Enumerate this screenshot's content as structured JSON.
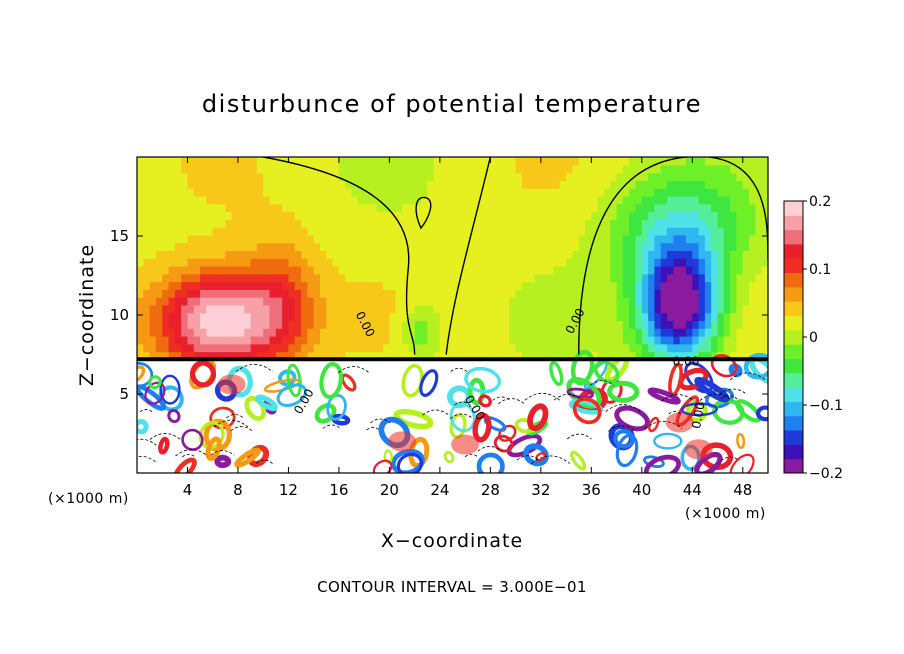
{
  "chart_data": {
    "type": "heatmap",
    "title": "disturbunce of potential temperature",
    "xlabel": "X−coordinate",
    "ylabel": "Z−coordinate",
    "x_unit_left": "(×1000 m)",
    "x_unit_right": "(×1000 m)",
    "footer": "CONTOUR INTERVAL = 3.000E−01",
    "xlim": [
      0,
      50
    ],
    "ylim": [
      0,
      20
    ],
    "x_ticks": [
      4,
      8,
      12,
      16,
      20,
      24,
      28,
      32,
      36,
      40,
      44,
      48
    ],
    "y_ticks": [
      5,
      10,
      15
    ],
    "colorbar": {
      "min": -0.2,
      "max": 0.2,
      "tick_values": [
        0.2,
        0.1,
        0,
        -0.1,
        -0.2
      ],
      "tick_labels": [
        "0.2",
        "0.1",
        "0",
        "−0.1",
        "−0.2"
      ],
      "colors": [
        "#8a1a9e",
        "#3a12b8",
        "#1f3ad8",
        "#1f7ef0",
        "#2fb8ef",
        "#4fe2e8",
        "#55ee9a",
        "#3fe63f",
        "#6ef028",
        "#b6f020",
        "#e6f020",
        "#f7c81a",
        "#f59a12",
        "#f06a10",
        "#ee2e22",
        "#e8202e",
        "#ef6e7a",
        "#f8a0a8",
        "#fcd0d6"
      ]
    },
    "contour_labels": [
      "0.00",
      "0.00",
      "0.00",
      "0.00",
      "0.00",
      "0.00",
      "0.00",
      "0.00"
    ],
    "field": {
      "background": 0.02,
      "features": [
        {
          "name": "warm anomaly",
          "x": 6.5,
          "z": 9.6,
          "sx": 5.0,
          "sz": 3.2,
          "amp": 0.19
        },
        {
          "name": "warm ridge",
          "x": 11.5,
          "z": 11.0,
          "sx": 3.0,
          "sz": 4.0,
          "amp": 0.06
        },
        {
          "name": "cold anomaly",
          "x": 43.0,
          "z": 10.6,
          "sx": 3.2,
          "sz": 3.6,
          "amp": -0.24
        },
        {
          "name": "cold plume",
          "x": 43.0,
          "z": 15.5,
          "sx": 5.5,
          "sz": 3.5,
          "amp": -0.08
        },
        {
          "name": "cool band",
          "x": 22.5,
          "z": 9.0,
          "sx": 1.5,
          "sz": 1.8,
          "amp": -0.05
        }
      ],
      "interface_z": 7.2
    }
  }
}
